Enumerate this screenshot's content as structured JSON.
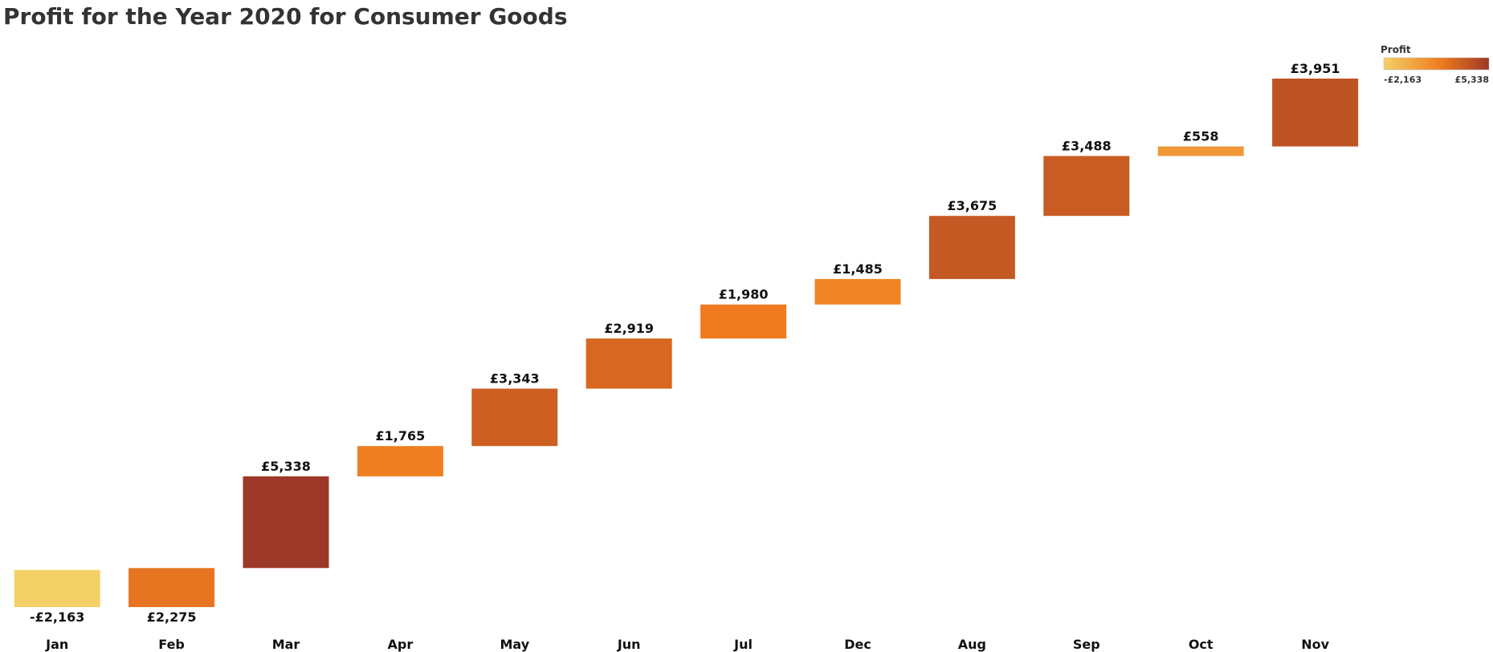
{
  "chart_data": {
    "type": "waterfall",
    "title": "Profit for the Year 2020 for Consumer Goods",
    "categories": [
      "Jan",
      "Feb",
      "Mar",
      "Apr",
      "May",
      "Jun",
      "Jul",
      "Dec",
      "Aug",
      "Sep",
      "Oct",
      "Nov"
    ],
    "values": [
      -2163,
      2275,
      5338,
      1765,
      3343,
      2919,
      1980,
      1485,
      3675,
      3488,
      558,
      3951
    ],
    "value_labels": [
      "-£2,163",
      "£2,275",
      "£5,338",
      "£1,765",
      "£3,343",
      "£2,919",
      "£1,980",
      "£1,485",
      "£3,675",
      "£3,488",
      "£558",
      "£3,951"
    ],
    "xlabel": "",
    "ylabel": "",
    "grid": false,
    "legend": {
      "title": "Profit",
      "placement": "top-right",
      "type": "color-gradient",
      "min_label": "-£2,163",
      "max_label": "£5,338",
      "min": -2163,
      "max": 5338,
      "colors": [
        "#F4D166",
        "#EF7A1F",
        "#9C3827"
      ]
    }
  }
}
